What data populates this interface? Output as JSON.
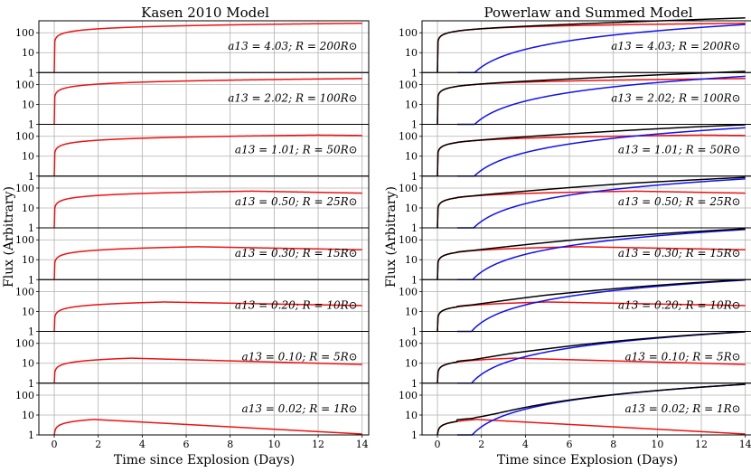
{
  "chart_data": {
    "type": "line",
    "ylabel": "Flux (Arbitrary)",
    "xlabel": "Time since Explosion (Days)",
    "xlim": [
      -0.7,
      14.3
    ],
    "ylim_log": [
      1,
      400
    ],
    "x_ticks": [
      "0",
      "2",
      "4",
      "6",
      "8",
      "10",
      "12",
      "14"
    ],
    "y_ticks": [
      "1",
      "10",
      "100"
    ],
    "y_tick_values": [
      1,
      10,
      100
    ],
    "grid": true,
    "colors": {
      "kasen": "#ee1111",
      "powerlaw": "#1111ee",
      "summed": "#000000",
      "grid": "#b0b0b0"
    },
    "panels": [
      {
        "title": "Kasen 2010 Model",
        "series": [
          "kasen"
        ]
      },
      {
        "title": "Powerlaw and Summed Model",
        "series": [
          "kasen",
          "powerlaw",
          "summed"
        ]
      }
    ],
    "rows": [
      {
        "a13": "4.03",
        "R": "200",
        "label": "a13 = 4.03; R = 200R⊙",
        "kasen_peak_flux": 300,
        "peak_day": 14,
        "decay_per_day": 0,
        "powerlaw_flux_day14": 260
      },
      {
        "a13": "2.02",
        "R": "100",
        "label": "a13 = 2.02; R = 100R⊙",
        "kasen_peak_flux": 200,
        "peak_day": 14,
        "decay_per_day": 0,
        "powerlaw_flux_day14": 260
      },
      {
        "a13": "1.01",
        "R": "50",
        "label": "a13 = 1.01; R = 50R⊙",
        "kasen_peak_flux": 115,
        "peak_day": 12,
        "decay_per_day": 0.01,
        "powerlaw_flux_day14": 270
      },
      {
        "a13": "0.50",
        "R": "25",
        "label": "a13 = 0.50; R = 25R⊙",
        "kasen_peak_flux": 70,
        "peak_day": 9,
        "decay_per_day": 0.02,
        "powerlaw_flux_day14": 290
      },
      {
        "a13": "0.30",
        "R": "15",
        "label": "a13 = 0.30; R = 15R⊙",
        "kasen_peak_flux": 45,
        "peak_day": 6.5,
        "decay_per_day": 0.02,
        "powerlaw_flux_day14": 330
      },
      {
        "a13": "0.20",
        "R": "10",
        "label": "a13 = 0.20; R = 10R⊙",
        "kasen_peak_flux": 30,
        "peak_day": 5,
        "decay_per_day": 0.02,
        "powerlaw_flux_day14": 380
      },
      {
        "a13": "0.10",
        "R": "5",
        "label": "a13 = 0.10; R = 5R⊙",
        "kasen_peak_flux": 18,
        "peak_day": 3.5,
        "decay_per_day": 0.03,
        "powerlaw_flux_day14": 380
      },
      {
        "a13": "0.02",
        "R": "1",
        "label": "a13 = 0.02; R = 1R⊙",
        "kasen_peak_flux": 6,
        "peak_day": 1.8,
        "decay_per_day": 0.06,
        "powerlaw_flux_day14": 350
      }
    ]
  }
}
